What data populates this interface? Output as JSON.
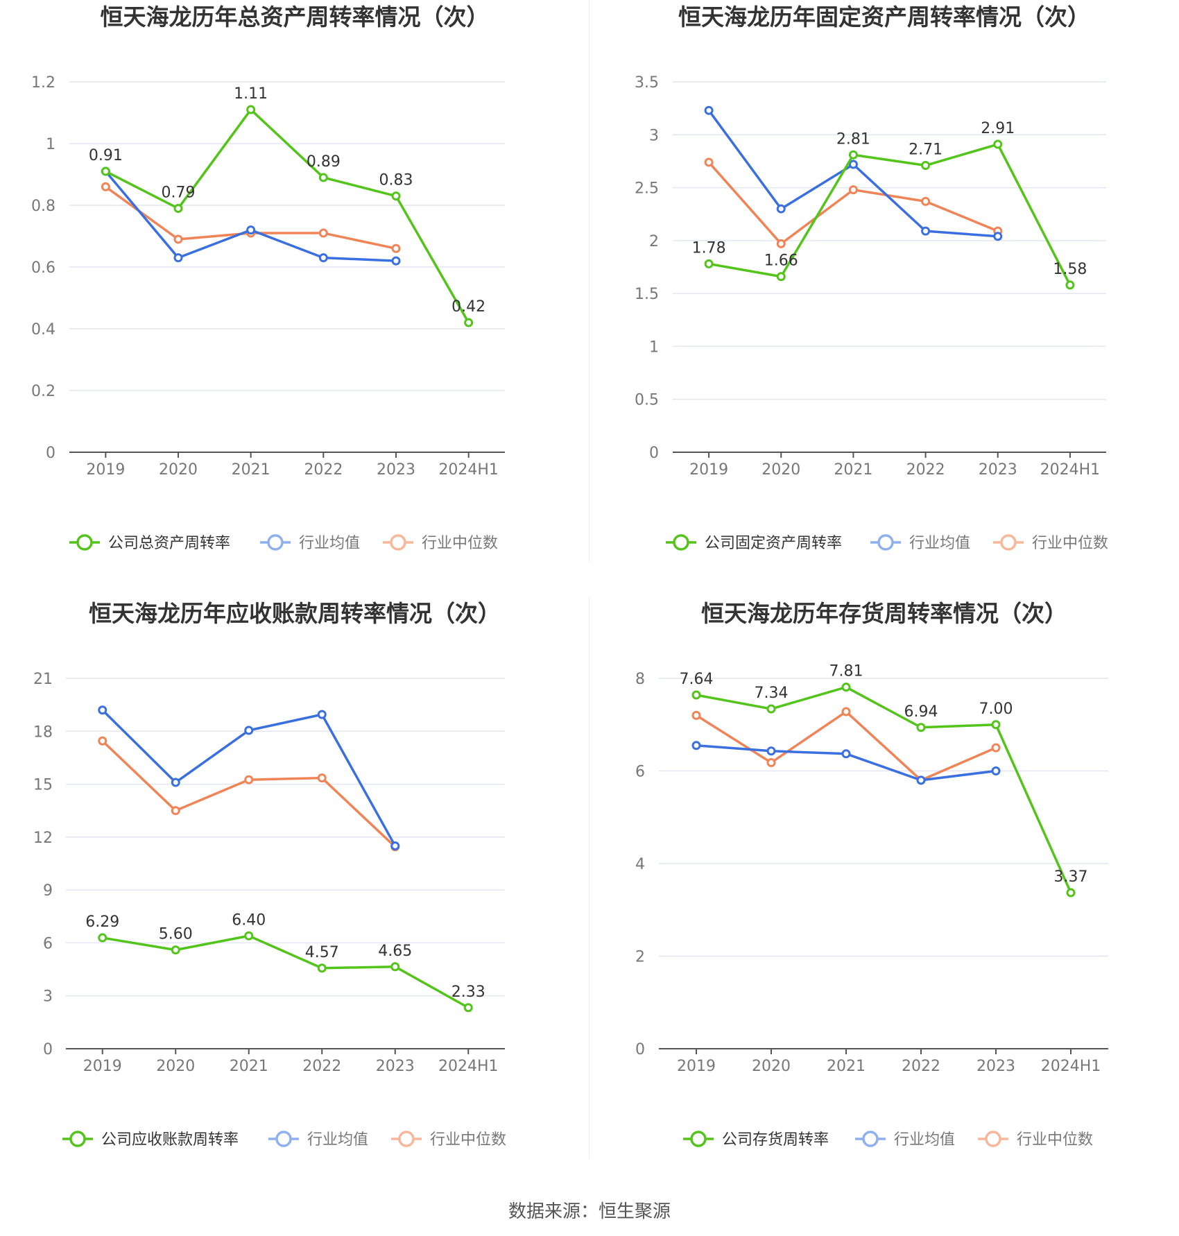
{
  "colors": {
    "company": "#52c41a",
    "industry_avg": "#3a6fe0",
    "industry_median": "#f08457",
    "grid": "#e3e6f0",
    "axis": "#555555",
    "tick_text": "#777777",
    "title_text": "#333333"
  },
  "legend_labels": {
    "avg": "行业均值",
    "median": "行业中位数"
  },
  "chart_data": [
    {
      "type": "line",
      "title": "恒天海龙历年总资产周转率情况（次）",
      "categories": [
        "2019",
        "2020",
        "2021",
        "2022",
        "2023",
        "2024H1"
      ],
      "yticks": [
        "0",
        "0.2",
        "0.4",
        "0.6",
        "0.8",
        "1",
        "1.2"
      ],
      "ylim": [
        0,
        1.2
      ],
      "grid": true,
      "legend_position": "bottom",
      "series": [
        {
          "name": "公司总资产周转率",
          "values": [
            0.91,
            0.79,
            1.11,
            0.89,
            0.83,
            0.42
          ],
          "labels": [
            "0.91",
            "0.79",
            "1.11",
            "0.89",
            "0.83",
            "0.42"
          ]
        },
        {
          "name": "行业均值",
          "values": [
            0.91,
            0.63,
            0.72,
            0.63,
            0.62,
            null
          ]
        },
        {
          "name": "行业中位数",
          "values": [
            0.86,
            0.69,
            0.71,
            0.71,
            0.66,
            null
          ]
        }
      ]
    },
    {
      "type": "line",
      "title": "恒天海龙历年固定资产周转率情况（次）",
      "categories": [
        "2019",
        "2020",
        "2021",
        "2022",
        "2023",
        "2024H1"
      ],
      "yticks": [
        "0",
        "0.5",
        "1",
        "1.5",
        "2",
        "2.5",
        "3",
        "3.5"
      ],
      "ylim": [
        0,
        3.5
      ],
      "grid": true,
      "legend_position": "bottom",
      "series": [
        {
          "name": "公司固定资产周转率",
          "values": [
            1.78,
            1.66,
            2.81,
            2.71,
            2.91,
            1.58
          ],
          "labels": [
            "1.78",
            "1.66",
            "2.81",
            "2.71",
            "2.91",
            "1.58"
          ]
        },
        {
          "name": "行业均值",
          "values": [
            3.23,
            2.3,
            2.72,
            2.09,
            2.04,
            null
          ]
        },
        {
          "name": "行业中位数",
          "values": [
            2.74,
            1.97,
            2.48,
            2.37,
            2.09,
            null
          ]
        }
      ]
    },
    {
      "type": "line",
      "title": "恒天海龙历年应收账款周转率情况（次）",
      "categories": [
        "2019",
        "2020",
        "2021",
        "2022",
        "2023",
        "2024H1"
      ],
      "yticks": [
        "0",
        "3",
        "6",
        "9",
        "12",
        "15",
        "18",
        "21"
      ],
      "ylim": [
        0,
        21
      ],
      "grid": true,
      "legend_position": "bottom",
      "series": [
        {
          "name": "公司应收账款周转率",
          "values": [
            6.29,
            5.6,
            6.4,
            4.57,
            4.65,
            2.33
          ],
          "labels": [
            "6.29",
            "5.60",
            "6.40",
            "4.57",
            "4.65",
            "2.33"
          ]
        },
        {
          "name": "行业均值",
          "values": [
            19.2,
            15.1,
            18.05,
            18.95,
            11.5,
            null
          ]
        },
        {
          "name": "行业中位数",
          "values": [
            17.45,
            13.5,
            15.25,
            15.35,
            11.45,
            null
          ]
        }
      ]
    },
    {
      "type": "line",
      "title": "恒天海龙历年存货周转率情况（次）",
      "categories": [
        "2019",
        "2020",
        "2021",
        "2022",
        "2023",
        "2024H1"
      ],
      "yticks": [
        "0",
        "2",
        "4",
        "6",
        "8"
      ],
      "ylim": [
        0,
        8
      ],
      "grid": true,
      "legend_position": "bottom",
      "series": [
        {
          "name": "公司存货周转率",
          "values": [
            7.64,
            7.34,
            7.81,
            6.94,
            7.0,
            3.37
          ],
          "labels": [
            "7.64",
            "7.34",
            "7.81",
            "6.94",
            "7.00",
            "3.37"
          ]
        },
        {
          "name": "行业均值",
          "values": [
            6.55,
            6.43,
            6.37,
            5.8,
            6.0,
            null
          ]
        },
        {
          "name": "行业中位数",
          "values": [
            7.2,
            6.18,
            7.28,
            5.8,
            6.5,
            null
          ]
        }
      ]
    }
  ],
  "source": "数据来源：恒生聚源"
}
